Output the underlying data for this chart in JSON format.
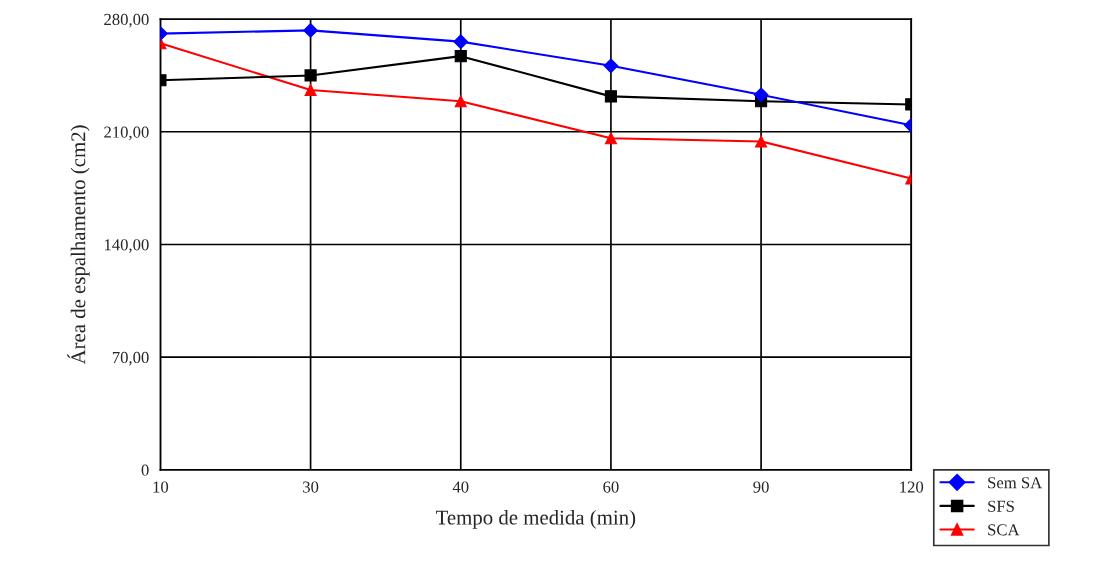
{
  "chart_data": {
    "type": "line",
    "xlabel": "Tempo de medida (min)",
    "ylabel": "Área de espalhamento (cm2)",
    "categories": [
      "10",
      "30",
      "40",
      "60",
      "90",
      "120"
    ],
    "series": [
      {
        "name": "Sem SA",
        "color": "#0000ff",
        "marker": "diamond",
        "values": [
          271,
          273,
          266,
          251,
          233,
          214
        ]
      },
      {
        "name": "SFS",
        "color": "#000000",
        "marker": "square",
        "values": [
          242,
          245,
          257,
          232,
          229,
          227
        ]
      },
      {
        "name": "SCA",
        "color": "#ff0000",
        "marker": "triangle",
        "values": [
          265,
          236,
          229,
          206,
          204,
          181
        ]
      }
    ],
    "ylim": [
      0,
      280
    ],
    "yticks": [
      0,
      {
        "value": 70,
        "label": "70,00"
      },
      {
        "value": 140,
        "label": "140,00"
      },
      {
        "value": 210,
        "label": "210,00"
      },
      {
        "value": 280,
        "label": "280,00"
      }
    ],
    "grid": true,
    "legend": "bottom right",
    "line_style": "solid"
  }
}
